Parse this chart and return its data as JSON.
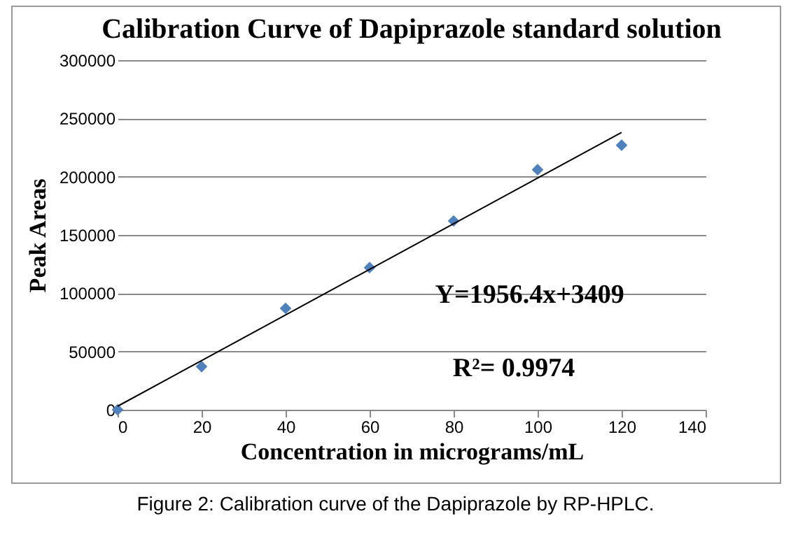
{
  "chart_data": {
    "type": "scatter",
    "title": "Calibration Curve of Dapiprazole standard solution",
    "xlabel": "Concentration in micrograms/mL",
    "ylabel": "Peak Areas",
    "x": [
      0,
      20,
      40,
      60,
      80,
      100,
      120
    ],
    "series": [
      {
        "color": "#4f81bd",
        "marker": "diamond",
        "values": [
          0,
          37000,
          87000,
          122000,
          162000,
          206000,
          227000
        ]
      },
      {
        "type": "line",
        "color": "#000000",
        "x": [
          0,
          120
        ],
        "values": [
          3000,
          238000
        ]
      }
    ],
    "xlim": [
      0,
      140
    ],
    "xticks": [
      0,
      20,
      40,
      60,
      80,
      100,
      120,
      140
    ],
    "ylim": [
      0,
      300000
    ],
    "yticks": [
      0,
      50000,
      100000,
      150000,
      200000,
      250000,
      300000
    ],
    "grid": "y",
    "annotations": [
      "Y=1956.4x+3409",
      "R²= 0.9974",
      "Figure 2: Calibration curve of the Dapiprazole by RP-HPLC."
    ]
  }
}
